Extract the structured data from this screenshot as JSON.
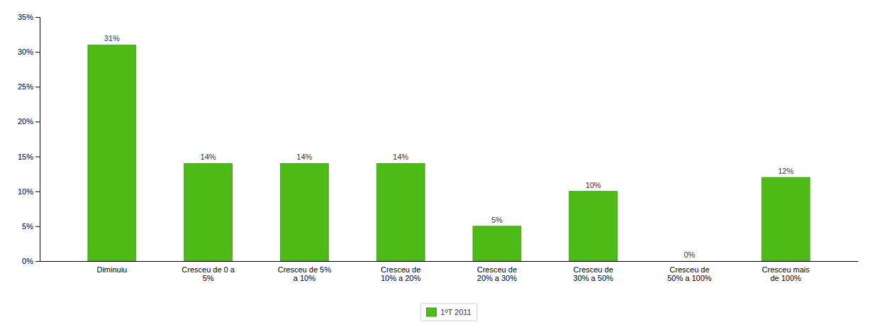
{
  "chart_data": {
    "type": "bar",
    "categories": [
      "Diminuiu",
      "Cresceu de 0 a\n5%",
      "Cresceu de 5%\na 10%",
      "Cresceu de\n10% a 20%",
      "Cresceu de\n20% a 30%",
      "Cresceu de\n30% a 50%",
      "Cresceu de\n50% a 100%",
      "Cresceu mais\nde 100%"
    ],
    "series": [
      {
        "name": "1ºT 2011",
        "color": "#4CBB17",
        "values": [
          31,
          14,
          14,
          14,
          5,
          10,
          0,
          12
        ],
        "value_labels": [
          "31%",
          "14%",
          "14%",
          "14%",
          "5%",
          "10%",
          "0%",
          "12%"
        ]
      }
    ],
    "ylim": [
      0,
      35
    ],
    "yticks": [
      {
        "value": 0,
        "label": "0%"
      },
      {
        "value": 5,
        "label": "5%"
      },
      {
        "value": 10,
        "label": "10%"
      },
      {
        "value": 15,
        "label": "15%"
      },
      {
        "value": 20,
        "label": "20%"
      },
      {
        "value": 25,
        "label": "25%"
      },
      {
        "value": 30,
        "label": "30%"
      },
      {
        "value": 35,
        "label": "35%"
      }
    ],
    "grid": false,
    "legend": "bottom",
    "data_labels": true
  }
}
